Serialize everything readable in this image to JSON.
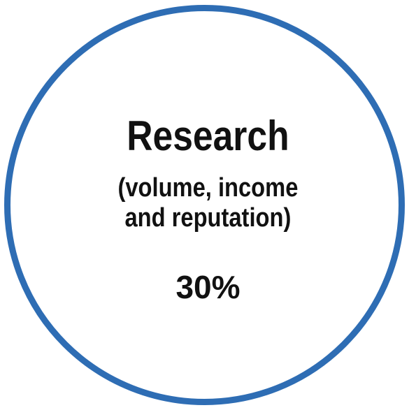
{
  "badge": {
    "title": "Research",
    "subtitle_line1": "(volume, income",
    "subtitle_line2": "and reputation)",
    "weight": "30%",
    "ring_color": "#2e6db4"
  }
}
